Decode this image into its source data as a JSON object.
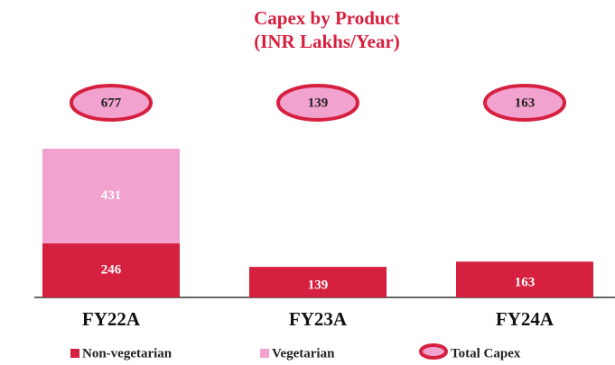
{
  "chart_data": {
    "type": "stacked_bar",
    "title": "Capex by Product",
    "subtitle": "(INR Lakhs/Year)",
    "categories": [
      "FY22A",
      "FY23A",
      "FY24A"
    ],
    "series": [
      {
        "name": "Non-vegetarian",
        "color": "#d6203f",
        "values": [
          246,
          139,
          163
        ]
      },
      {
        "name": "Vegetarian",
        "color": "#f2a2cf",
        "values": [
          431,
          null,
          null
        ]
      }
    ],
    "total": {
      "name": "Total Capex",
      "color": "#f2a2cf",
      "edge_color": "#d6203f",
      "values": [
        677,
        139,
        163
      ]
    },
    "legend": "bottom"
  }
}
